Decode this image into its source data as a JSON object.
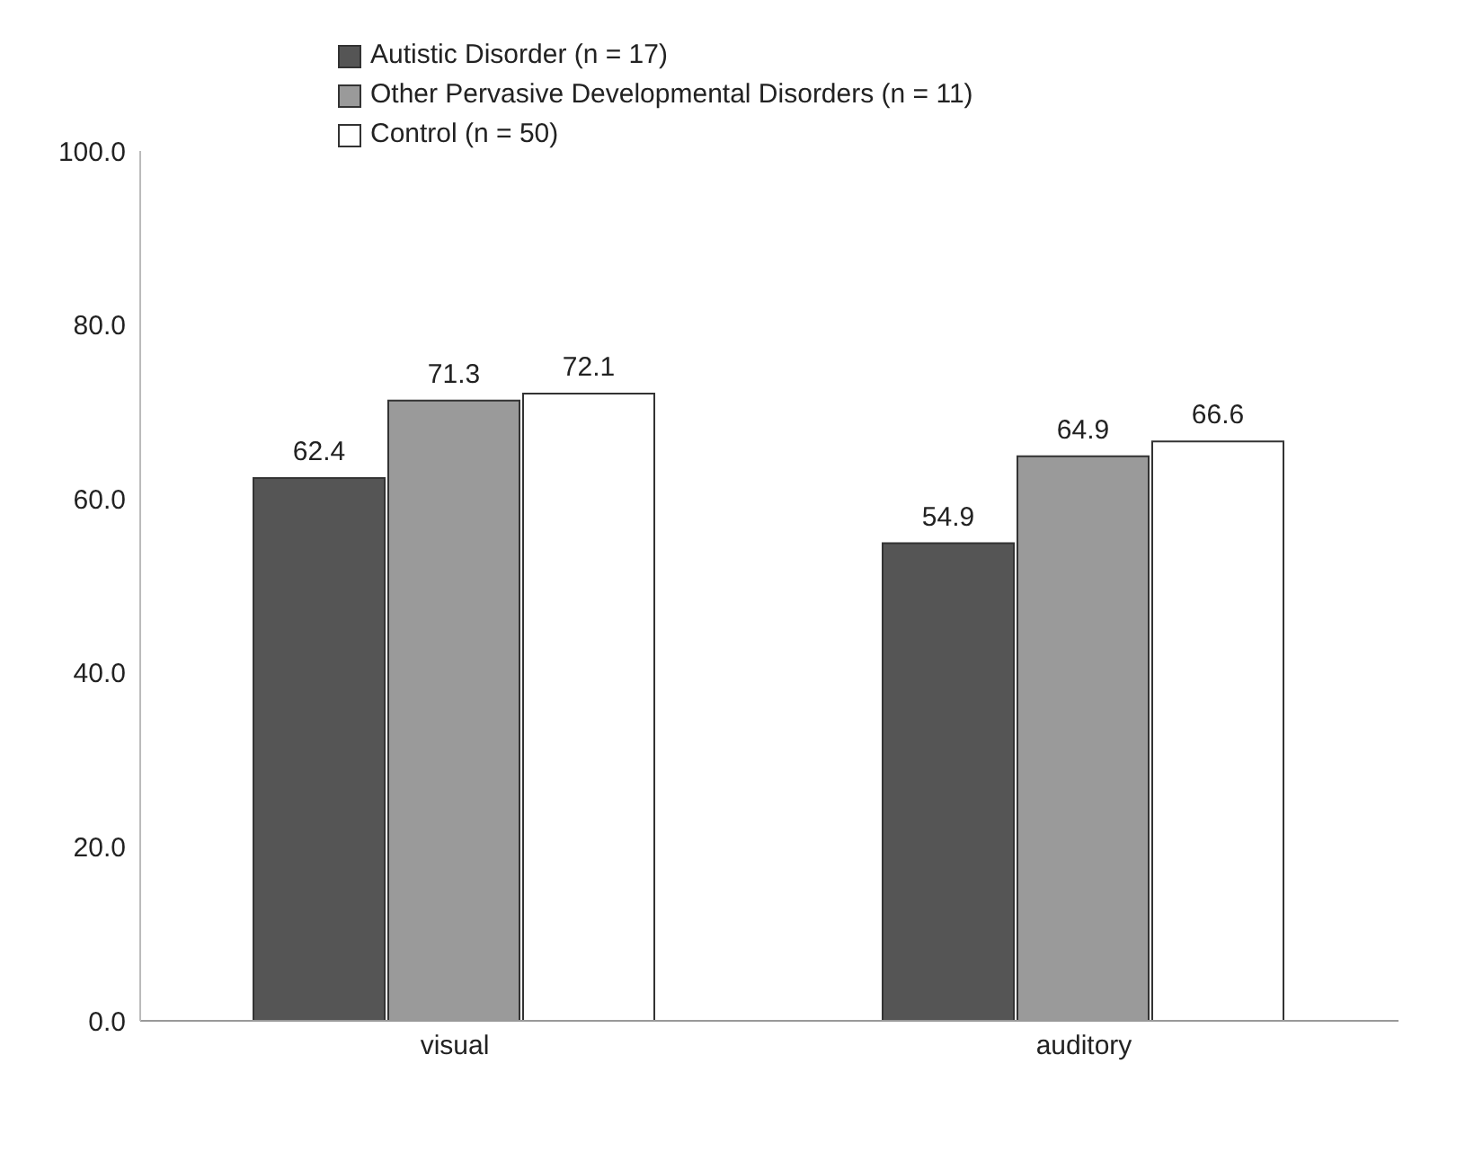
{
  "chart_data": {
    "type": "bar",
    "categories": [
      "visual",
      "auditory"
    ],
    "series": [
      {
        "name": "Autistic Disorder (n = 17)",
        "color": "#555555",
        "values": [
          62.4,
          54.9
        ]
      },
      {
        "name": "Other Pervasive Developmental Disorders (n = 11)",
        "color": "#9a9a9a",
        "values": [
          71.3,
          64.9
        ]
      },
      {
        "name": "Control (n = 50)",
        "color": "#ffffff",
        "values": [
          72.1,
          66.6
        ]
      }
    ],
    "ylim": [
      0,
      100
    ],
    "yticks": [
      {
        "value": 0,
        "label": "0.0"
      },
      {
        "value": 20,
        "label": "20.0"
      },
      {
        "value": 40,
        "label": "40.0"
      },
      {
        "value": 60,
        "label": "60.0"
      },
      {
        "value": 80,
        "label": "80.0"
      },
      {
        "value": 100,
        "label": "100.0"
      }
    ],
    "data_labels": true,
    "legend": "top",
    "grid": false
  }
}
